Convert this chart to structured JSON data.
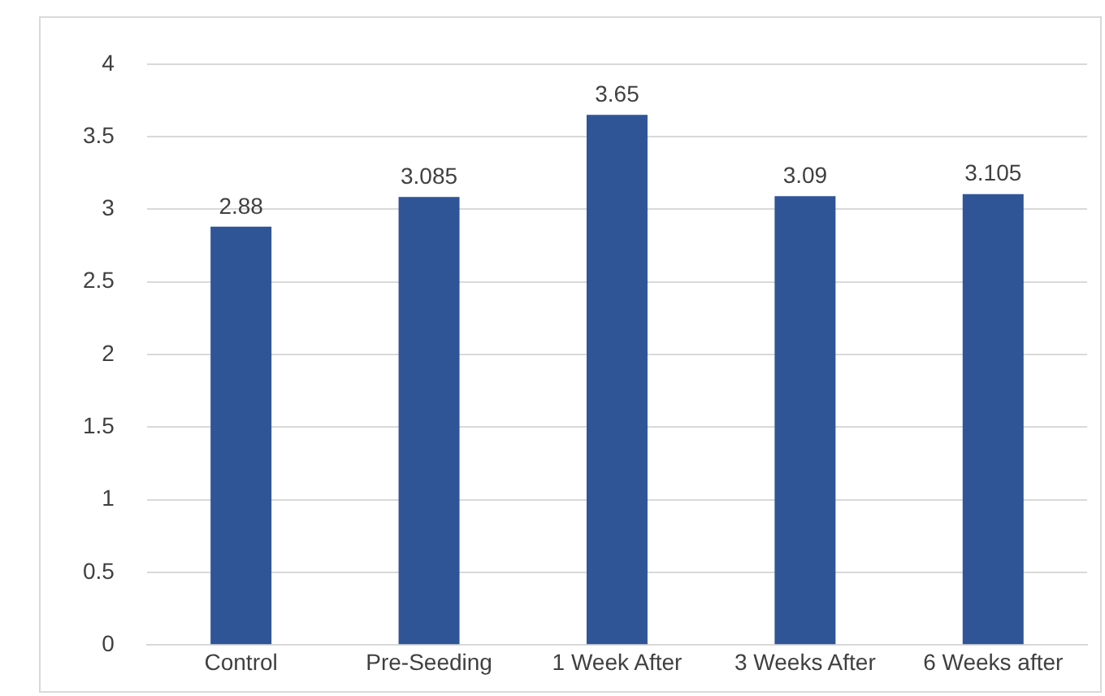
{
  "chart_data": {
    "type": "bar",
    "categories": [
      "Control",
      "Pre-Seeding",
      "1 Week After",
      "3 Weeks After",
      "6 Weeks after"
    ],
    "values": [
      2.88,
      3.085,
      3.65,
      3.09,
      3.105
    ],
    "color": "#2f5597",
    "ylim": [
      0,
      4
    ],
    "yticks": [
      0,
      0.5,
      1,
      1.5,
      2,
      2.5,
      3,
      3.5,
      4
    ],
    "grid": "y",
    "data_labels": true
  }
}
